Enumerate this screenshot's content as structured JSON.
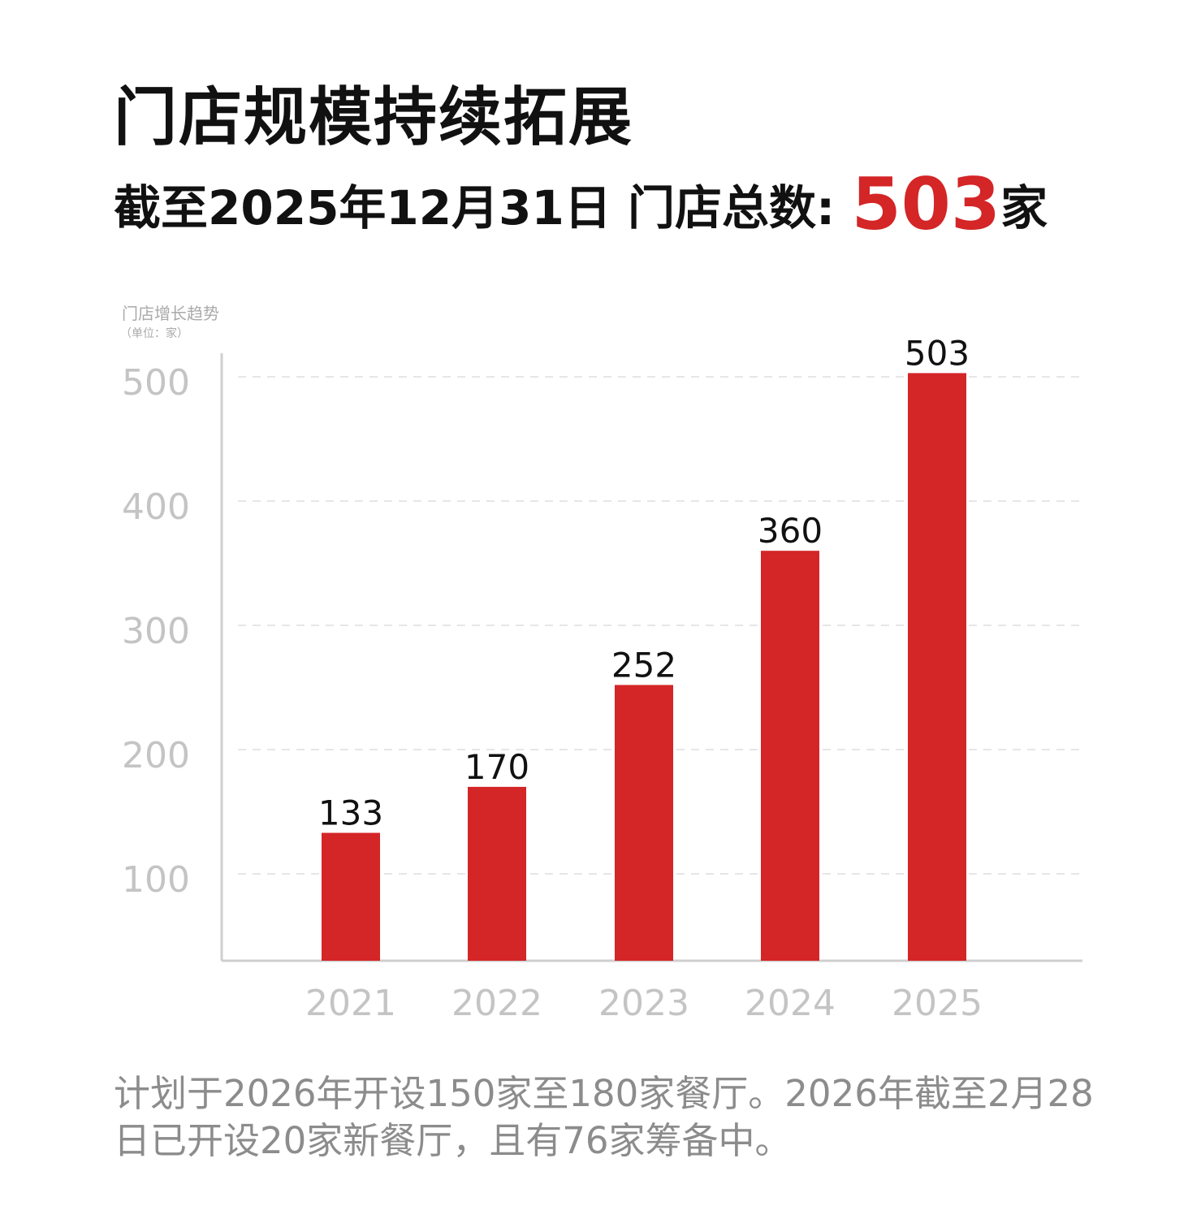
{
  "header": {
    "title": "门店规模持续拓展",
    "subtitle_prefix": "截至2025年12月31日 门店总数: ",
    "subtitle_value": "503",
    "subtitle_suffix": "家"
  },
  "chart_data": {
    "type": "bar",
    "title": "门店增长趋势",
    "unit_label": "（单位：家）",
    "categories": [
      "2021",
      "2022",
      "2023",
      "2024",
      "2025"
    ],
    "values": [
      133,
      170,
      252,
      360,
      503
    ],
    "data_labels": [
      "133",
      "170",
      "252",
      "360",
      "503"
    ],
    "y_ticks": [
      "100",
      "200",
      "300",
      "400",
      "500"
    ],
    "ylim": [
      30,
      520
    ],
    "grid": true,
    "grid_style": "dashed",
    "bar_color": "#d42527",
    "legend": "none"
  },
  "footer": {
    "note": "计划于2026年开设150家至180家餐厅。2026年截至2月28日已开设20家新餐厅，且有76家筹备中。"
  }
}
